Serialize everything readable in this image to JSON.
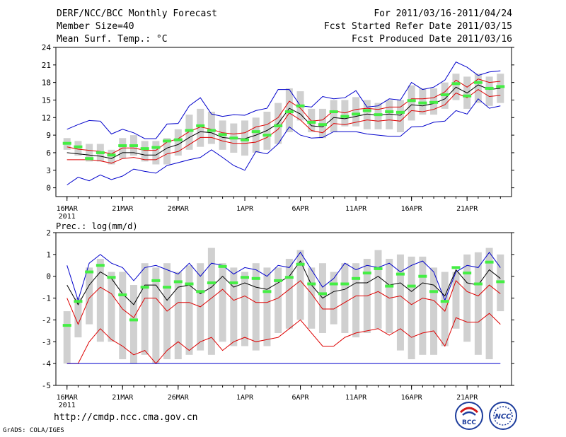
{
  "header": {
    "title": "DERF/NCC/BCC Monthly Forecast",
    "member": "Member Size=40",
    "variable": "Mean Surf. Temp.: °C",
    "for": "For 2011/03/16-2011/04/24",
    "started": "Fcst Started Refer Date 2011/03/15",
    "produced": "Fcst Produced Date 2011/03/16"
  },
  "footer": {
    "url": "http://cmdp.ncc.cma.gov.cn",
    "grads": "GrADS: COLA/IGES",
    "logo1_text": "BCC",
    "logo2_text": "NCC"
  },
  "colors": {
    "box": "#d0d0d0",
    "median": "#44ee44",
    "mean": "#000000",
    "inner": "#dd0000",
    "outer": "#0000cc"
  },
  "chart_data": [
    {
      "type": "box",
      "title": "Mean Surf. Temp.: °C",
      "x": [
        "16MAR",
        "17MAR",
        "18MAR",
        "19MAR",
        "20MAR",
        "21MAR",
        "22MAR",
        "23MAR",
        "24MAR",
        "25MAR",
        "26MAR",
        "27MAR",
        "28MAR",
        "29MAR",
        "30MAR",
        "31MAR",
        "1APR",
        "2APR",
        "3APR",
        "4APR",
        "5APR",
        "6APR",
        "7APR",
        "8APR",
        "9APR",
        "10APR",
        "11APR",
        "12APR",
        "13APR",
        "14APR",
        "15APR",
        "16APR",
        "17APR",
        "18APR",
        "19APR",
        "20APR",
        "21APR",
        "22APR",
        "23APR",
        "24APR"
      ],
      "xtick_labels": [
        "16MAR",
        "21MAR",
        "26MAR",
        "1APR",
        "6APR",
        "11APR",
        "16APR",
        "21APR"
      ],
      "xtick_index": [
        0,
        5,
        10,
        16,
        21,
        26,
        31,
        36
      ],
      "year_label": "2011",
      "ylim": [
        -1.5,
        24
      ],
      "yticks": [
        0,
        3,
        6,
        9,
        12,
        15,
        18,
        21,
        24
      ],
      "box_low": [
        6.5,
        5.5,
        4.5,
        4.5,
        4.0,
        5.0,
        5.5,
        4.5,
        4.0,
        4.0,
        5.5,
        6.5,
        7.0,
        7.5,
        6.5,
        6.0,
        5.5,
        6.0,
        6.5,
        7.5,
        9.5,
        11.5,
        9.5,
        8.5,
        9.5,
        10.5,
        10.5,
        10.0,
        10.0,
        10.0,
        9.5,
        11.5,
        12.5,
        12.5,
        13.5,
        15.0,
        13.5,
        14.5,
        14.0,
        14.5
      ],
      "box_high": [
        8.5,
        8.0,
        7.5,
        7.5,
        6.5,
        8.5,
        9.0,
        8.0,
        8.0,
        8.5,
        10.0,
        12.5,
        13.5,
        13.0,
        11.5,
        11.0,
        11.5,
        12.0,
        13.0,
        14.5,
        17.0,
        16.5,
        13.5,
        13.5,
        15.0,
        15.0,
        15.5,
        15.0,
        14.5,
        15.0,
        15.0,
        17.5,
        17.0,
        17.0,
        18.0,
        19.5,
        19.0,
        19.5,
        19.0,
        19.5
      ],
      "median": [
        7.6,
        7.0,
        5.0,
        6.0,
        5.6,
        7.2,
        7.2,
        6.7,
        6.9,
        8.0,
        8.2,
        9.8,
        10.6,
        9.8,
        9.1,
        8.5,
        8.2,
        9.6,
        9.0,
        10.6,
        13.0,
        14.0,
        11.2,
        10.8,
        13.0,
        12.2,
        12.6,
        13.2,
        12.5,
        13.0,
        12.9,
        14.9,
        14.5,
        14.6,
        15.9,
        17.8,
        15.7,
        18.0,
        17.0,
        17.3
      ],
      "series": [
        {
          "name": "upper_outer",
          "color": "#0000cc",
          "values": [
            10.0,
            10.8,
            11.5,
            11.4,
            9.2,
            10.0,
            9.4,
            8.4,
            8.4,
            10.9,
            11.0,
            14.0,
            15.4,
            12.6,
            12.2,
            12.5,
            12.4,
            13.2,
            13.6,
            16.8,
            16.8,
            14.0,
            13.8,
            15.6,
            15.2,
            15.4,
            16.6,
            13.8,
            14.0,
            15.2,
            15.0,
            18.0,
            16.8,
            17.2,
            18.4,
            21.5,
            20.6,
            19.2,
            19.8,
            20.0
          ]
        },
        {
          "name": "upper_inner",
          "color": "#dd0000",
          "values": [
            7.0,
            6.6,
            6.4,
            6.2,
            5.8,
            6.8,
            6.8,
            6.4,
            6.4,
            7.8,
            8.4,
            9.6,
            10.4,
            10.0,
            9.4,
            9.2,
            9.4,
            10.4,
            10.8,
            12.0,
            14.8,
            13.6,
            11.4,
            11.6,
            13.2,
            12.8,
            13.4,
            13.6,
            13.4,
            13.8,
            13.8,
            15.2,
            15.2,
            15.4,
            16.4,
            18.4,
            17.2,
            18.6,
            18.0,
            18.2
          ]
        },
        {
          "name": "mean",
          "color": "#000000",
          "values": [
            6.0,
            5.8,
            5.6,
            5.4,
            5.0,
            6.0,
            6.0,
            5.6,
            5.6,
            6.8,
            7.4,
            8.6,
            9.6,
            9.4,
            8.6,
            8.4,
            8.4,
            9.0,
            9.8,
            11.0,
            13.6,
            12.6,
            10.6,
            10.4,
            12.0,
            11.8,
            12.2,
            12.6,
            12.4,
            12.6,
            12.4,
            14.2,
            14.0,
            14.4,
            15.2,
            17.2,
            16.2,
            17.6,
            16.8,
            17.0
          ]
        },
        {
          "name": "lower_inner",
          "color": "#dd0000",
          "values": [
            4.8,
            4.8,
            4.8,
            4.6,
            4.2,
            5.0,
            5.2,
            4.8,
            4.8,
            5.8,
            6.2,
            7.4,
            8.6,
            8.6,
            8.0,
            7.6,
            7.6,
            7.8,
            8.6,
            10.0,
            12.8,
            11.6,
            9.8,
            9.4,
            11.0,
            10.8,
            11.2,
            11.6,
            11.4,
            11.6,
            11.4,
            13.2,
            13.0,
            13.4,
            14.2,
            16.2,
            15.4,
            16.8,
            15.6,
            15.8
          ]
        },
        {
          "name": "lower_outer",
          "color": "#0000cc",
          "values": [
            0.5,
            1.8,
            1.2,
            2.2,
            1.4,
            2.0,
            3.2,
            2.8,
            2.5,
            3.8,
            4.3,
            4.8,
            5.2,
            6.5,
            5.2,
            3.8,
            3.0,
            6.2,
            5.8,
            7.5,
            10.4,
            9.0,
            8.5,
            8.6,
            9.6,
            9.6,
            9.6,
            9.2,
            9.0,
            8.8,
            8.8,
            10.4,
            10.5,
            11.2,
            11.4,
            13.2,
            12.6,
            15.2,
            13.6,
            14.0
          ]
        }
      ]
    },
    {
      "type": "box",
      "title": "Prec.: log(mm/d)",
      "x": [
        "16MAR",
        "17MAR",
        "18MAR",
        "19MAR",
        "20MAR",
        "21MAR",
        "22MAR",
        "23MAR",
        "24MAR",
        "25MAR",
        "26MAR",
        "27MAR",
        "28MAR",
        "29MAR",
        "30MAR",
        "31MAR",
        "1APR",
        "2APR",
        "3APR",
        "4APR",
        "5APR",
        "6APR",
        "7APR",
        "8APR",
        "9APR",
        "10APR",
        "11APR",
        "12APR",
        "13APR",
        "14APR",
        "15APR",
        "16APR",
        "17APR",
        "18APR",
        "19APR",
        "20APR",
        "21APR",
        "22APR",
        "23APR",
        "24APR"
      ],
      "xtick_labels": [
        "16MAR",
        "21MAR",
        "26MAR",
        "1APR",
        "6APR",
        "11APR",
        "16APR",
        "21APR"
      ],
      "xtick_index": [
        0,
        5,
        10,
        16,
        21,
        26,
        31,
        36
      ],
      "year_label": "2011",
      "ylim": [
        -5,
        2
      ],
      "yticks": [
        -5,
        -4,
        -3,
        -2,
        -1,
        0,
        1,
        2
      ],
      "box_low": [
        -4.0,
        -2.8,
        -2.2,
        -3.0,
        -3.0,
        -3.8,
        -4.0,
        -3.6,
        -4.0,
        -3.8,
        -3.8,
        -3.6,
        -3.4,
        -3.6,
        -3.0,
        -3.2,
        -3.2,
        -3.4,
        -3.2,
        -2.6,
        -2.4,
        -2.0,
        -2.4,
        -2.6,
        -2.2,
        -2.6,
        -2.8,
        -2.6,
        -2.4,
        -2.6,
        -3.4,
        -3.8,
        -3.6,
        -3.6,
        -3.2,
        -2.4,
        -3.0,
        -3.6,
        -3.8,
        -1.6
      ],
      "box_high": [
        -1.6,
        -1.0,
        0.4,
        0.8,
        0.2,
        0.2,
        -0.4,
        0.6,
        0.4,
        0.6,
        0.2,
        0.5,
        0.6,
        1.3,
        0.6,
        0.4,
        0.2,
        0.6,
        0.4,
        0.4,
        0.8,
        1.2,
        0.4,
        0.6,
        0.2,
        0.6,
        0.6,
        0.8,
        1.2,
        0.8,
        1.0,
        0.9,
        0.9,
        0.4,
        0.2,
        0.2,
        1.0,
        1.1,
        1.3,
        1.0
      ],
      "median": [
        -2.25,
        -1.15,
        0.2,
        0.5,
        -0.05,
        -0.85,
        -2.0,
        -0.5,
        -0.2,
        -0.5,
        -0.25,
        -0.35,
        -0.7,
        -0.3,
        0.45,
        -0.3,
        -0.05,
        -0.1,
        -0.7,
        -0.2,
        -0.05,
        0.55,
        -0.35,
        -0.8,
        -0.35,
        -0.35,
        -0.1,
        0.15,
        0.35,
        -0.45,
        0.1,
        -0.45,
        0.0,
        -0.7,
        -1.15,
        0.4,
        0.15,
        -0.35,
        0.65,
        -0.25
      ],
      "series": [
        {
          "name": "upper_outer",
          "color": "#0000cc",
          "values": [
            0.5,
            -1.1,
            0.6,
            1.0,
            0.6,
            0.4,
            -0.2,
            0.4,
            0.5,
            0.3,
            0.1,
            0.6,
            0.0,
            0.6,
            0.5,
            0.1,
            0.4,
            0.3,
            0.0,
            0.5,
            0.4,
            1.1,
            0.3,
            -0.5,
            -0.1,
            0.6,
            0.3,
            0.5,
            0.4,
            0.6,
            0.2,
            0.5,
            0.7,
            0.2,
            -1.1,
            0.2,
            0.5,
            0.4,
            1.1,
            0.4
          ]
        },
        {
          "name": "mean",
          "color": "#000000",
          "values": [
            -0.4,
            -1.3,
            -0.4,
            0.2,
            -0.1,
            -0.8,
            -1.3,
            -0.4,
            -0.4,
            -1.1,
            -0.5,
            -0.4,
            -0.8,
            -0.5,
            0.0,
            -0.5,
            -0.3,
            -0.5,
            -0.6,
            -0.3,
            0.0,
            0.7,
            -0.4,
            -1.0,
            -0.7,
            -0.6,
            -0.3,
            -0.3,
            0.0,
            -0.4,
            -0.3,
            -0.7,
            -0.3,
            -0.4,
            -0.9,
            0.3,
            -0.3,
            -0.4,
            0.3,
            -0.1
          ]
        },
        {
          "name": "upper_inner",
          "color": "#dd0000",
          "values": [
            -1.0,
            -2.2,
            -1.0,
            -0.5,
            -0.8,
            -1.5,
            -1.9,
            -1.0,
            -1.0,
            -1.6,
            -1.2,
            -1.2,
            -1.4,
            -1.0,
            -0.6,
            -1.1,
            -0.9,
            -1.2,
            -1.2,
            -1.0,
            -0.6,
            -0.2,
            -0.8,
            -1.5,
            -1.5,
            -1.2,
            -0.9,
            -0.9,
            -0.7,
            -1.0,
            -0.9,
            -1.3,
            -1.0,
            -1.1,
            -1.6,
            -0.2,
            -0.7,
            -0.9,
            -0.4,
            -0.8
          ]
        },
        {
          "name": "lower_inner",
          "color": "#dd0000",
          "values": [
            -4.0,
            -4.0,
            -3.0,
            -2.4,
            -2.9,
            -3.2,
            -3.6,
            -3.4,
            -4.0,
            -3.4,
            -3.0,
            -3.4,
            -3.0,
            -2.8,
            -3.4,
            -3.0,
            -2.8,
            -3.0,
            -2.9,
            -2.8,
            -2.4,
            -2.0,
            -2.6,
            -3.2,
            -3.2,
            -2.8,
            -2.6,
            -2.5,
            -2.4,
            -2.7,
            -2.4,
            -2.8,
            -2.6,
            -2.5,
            -3.2,
            -1.9,
            -2.1,
            -2.1,
            -1.7,
            -2.2
          ]
        },
        {
          "name": "lower_outer",
          "color": "#0000cc",
          "values": [
            -4.0,
            -4.0,
            -4.0,
            -4.0,
            -4.0,
            -4.0,
            -4.0,
            -4.0,
            -4.0,
            -4.0,
            -4.0,
            -4.0,
            -4.0,
            -4.0,
            -4.0,
            -4.0,
            -4.0,
            -4.0,
            -4.0,
            -4.0,
            -4.0,
            -4.0,
            -4.0,
            -4.0,
            -4.0,
            -4.0,
            -4.0,
            -4.0,
            -4.0,
            -4.0,
            -4.0,
            -4.0,
            -4.0,
            -4.0,
            -4.0,
            -4.0,
            -4.0,
            -4.0,
            -4.0,
            -4.0
          ]
        }
      ]
    }
  ]
}
